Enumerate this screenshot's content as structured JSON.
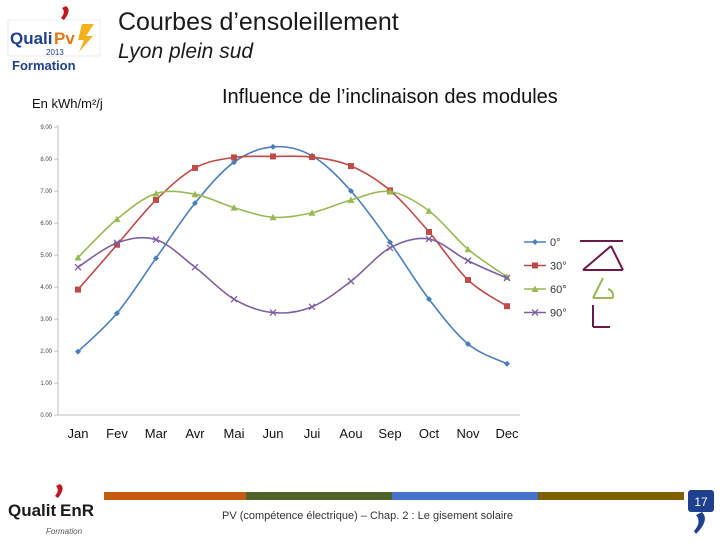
{
  "header": {
    "title": "Courbes d’ensoleillement",
    "subtitle": "Lyon plein sud"
  },
  "logo_top": {
    "brand": "QualiPV",
    "year": "2013",
    "label": "Formation"
  },
  "unit_label": "En kWh/m²/j",
  "footer": {
    "text": "PV (compétence électrique) – Chap. 2 : Le gisement solaire",
    "page_number": "17",
    "logo_brand": "QualitEnR",
    "logo_sub": "Formation",
    "bar_colors": [
      "#c55a11",
      "#4f6228",
      "#4472c4",
      "#7f6000",
      "#c00000"
    ]
  },
  "colors": {
    "s0": "#4a7ebb",
    "s30": "#be4b48",
    "s60": "#98b954",
    "s90": "#7d60a0",
    "orient": "#6b1a4a"
  },
  "chart_data": {
    "type": "line",
    "title": "Influence de l’inclinaison des modules",
    "xlabel": "",
    "ylabel": "En kWh/m²/j",
    "categories": [
      "Jan",
      "Fev",
      "Mar",
      "Avr",
      "Mai",
      "Jun",
      "Jui",
      "Aou",
      "Sep",
      "Oct",
      "Nov",
      "Dec"
    ],
    "ylim": [
      0,
      9
    ],
    "yticks": [
      "0.00",
      "1.00",
      "2.00",
      "3.00",
      "4.00",
      "5.00",
      "6.00",
      "7.00",
      "8.00",
      "9.00"
    ],
    "legend_position": "right",
    "series": [
      {
        "name": "0°",
        "marker": "diamond",
        "values": [
          1.98,
          3.18,
          4.9,
          6.62,
          7.9,
          8.38,
          8.1,
          7.0,
          5.4,
          3.62,
          2.22,
          1.6
        ]
      },
      {
        "name": "30°",
        "marker": "square",
        "values": [
          3.92,
          5.32,
          6.72,
          7.72,
          8.05,
          8.08,
          8.06,
          7.78,
          7.02,
          5.72,
          4.22,
          3.4
        ]
      },
      {
        "name": "60°",
        "marker": "triangle",
        "values": [
          4.92,
          6.12,
          6.92,
          6.9,
          6.48,
          6.18,
          6.32,
          6.72,
          6.98,
          6.38,
          5.18,
          4.32
        ]
      },
      {
        "name": "90°",
        "marker": "x",
        "values": [
          4.62,
          5.38,
          5.48,
          4.62,
          3.62,
          3.2,
          3.38,
          4.18,
          5.22,
          5.5,
          4.82,
          4.28
        ]
      }
    ]
  }
}
